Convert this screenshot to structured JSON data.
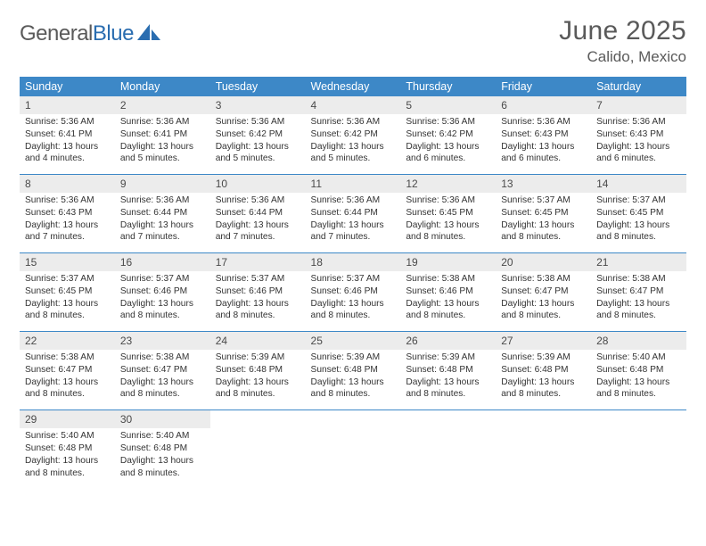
{
  "logo": {
    "word1": "General",
    "word2": "Blue"
  },
  "header": {
    "title": "June 2025",
    "location": "Calido, Mexico"
  },
  "colors": {
    "accent": "#3d88c7",
    "daynum_bg": "#ececec",
    "text_muted": "#5a5a5a",
    "text_body": "#333333",
    "logo_blue": "#2a6db0"
  },
  "typography": {
    "title_fontsize": 30,
    "location_fontsize": 17,
    "dow_fontsize": 12.5,
    "daynum_fontsize": 12,
    "cell_fontsize": 10.2
  },
  "calendar": {
    "dow": [
      "Sunday",
      "Monday",
      "Tuesday",
      "Wednesday",
      "Thursday",
      "Friday",
      "Saturday"
    ],
    "weeks": [
      [
        {
          "num": "1",
          "sunrise": "Sunrise: 5:36 AM",
          "sunset": "Sunset: 6:41 PM",
          "daylight": "Daylight: 13 hours and 4 minutes."
        },
        {
          "num": "2",
          "sunrise": "Sunrise: 5:36 AM",
          "sunset": "Sunset: 6:41 PM",
          "daylight": "Daylight: 13 hours and 5 minutes."
        },
        {
          "num": "3",
          "sunrise": "Sunrise: 5:36 AM",
          "sunset": "Sunset: 6:42 PM",
          "daylight": "Daylight: 13 hours and 5 minutes."
        },
        {
          "num": "4",
          "sunrise": "Sunrise: 5:36 AM",
          "sunset": "Sunset: 6:42 PM",
          "daylight": "Daylight: 13 hours and 5 minutes."
        },
        {
          "num": "5",
          "sunrise": "Sunrise: 5:36 AM",
          "sunset": "Sunset: 6:42 PM",
          "daylight": "Daylight: 13 hours and 6 minutes."
        },
        {
          "num": "6",
          "sunrise": "Sunrise: 5:36 AM",
          "sunset": "Sunset: 6:43 PM",
          "daylight": "Daylight: 13 hours and 6 minutes."
        },
        {
          "num": "7",
          "sunrise": "Sunrise: 5:36 AM",
          "sunset": "Sunset: 6:43 PM",
          "daylight": "Daylight: 13 hours and 6 minutes."
        }
      ],
      [
        {
          "num": "8",
          "sunrise": "Sunrise: 5:36 AM",
          "sunset": "Sunset: 6:43 PM",
          "daylight": "Daylight: 13 hours and 7 minutes."
        },
        {
          "num": "9",
          "sunrise": "Sunrise: 5:36 AM",
          "sunset": "Sunset: 6:44 PM",
          "daylight": "Daylight: 13 hours and 7 minutes."
        },
        {
          "num": "10",
          "sunrise": "Sunrise: 5:36 AM",
          "sunset": "Sunset: 6:44 PM",
          "daylight": "Daylight: 13 hours and 7 minutes."
        },
        {
          "num": "11",
          "sunrise": "Sunrise: 5:36 AM",
          "sunset": "Sunset: 6:44 PM",
          "daylight": "Daylight: 13 hours and 7 minutes."
        },
        {
          "num": "12",
          "sunrise": "Sunrise: 5:36 AM",
          "sunset": "Sunset: 6:45 PM",
          "daylight": "Daylight: 13 hours and 8 minutes."
        },
        {
          "num": "13",
          "sunrise": "Sunrise: 5:37 AM",
          "sunset": "Sunset: 6:45 PM",
          "daylight": "Daylight: 13 hours and 8 minutes."
        },
        {
          "num": "14",
          "sunrise": "Sunrise: 5:37 AM",
          "sunset": "Sunset: 6:45 PM",
          "daylight": "Daylight: 13 hours and 8 minutes."
        }
      ],
      [
        {
          "num": "15",
          "sunrise": "Sunrise: 5:37 AM",
          "sunset": "Sunset: 6:45 PM",
          "daylight": "Daylight: 13 hours and 8 minutes."
        },
        {
          "num": "16",
          "sunrise": "Sunrise: 5:37 AM",
          "sunset": "Sunset: 6:46 PM",
          "daylight": "Daylight: 13 hours and 8 minutes."
        },
        {
          "num": "17",
          "sunrise": "Sunrise: 5:37 AM",
          "sunset": "Sunset: 6:46 PM",
          "daylight": "Daylight: 13 hours and 8 minutes."
        },
        {
          "num": "18",
          "sunrise": "Sunrise: 5:37 AM",
          "sunset": "Sunset: 6:46 PM",
          "daylight": "Daylight: 13 hours and 8 minutes."
        },
        {
          "num": "19",
          "sunrise": "Sunrise: 5:38 AM",
          "sunset": "Sunset: 6:46 PM",
          "daylight": "Daylight: 13 hours and 8 minutes."
        },
        {
          "num": "20",
          "sunrise": "Sunrise: 5:38 AM",
          "sunset": "Sunset: 6:47 PM",
          "daylight": "Daylight: 13 hours and 8 minutes."
        },
        {
          "num": "21",
          "sunrise": "Sunrise: 5:38 AM",
          "sunset": "Sunset: 6:47 PM",
          "daylight": "Daylight: 13 hours and 8 minutes."
        }
      ],
      [
        {
          "num": "22",
          "sunrise": "Sunrise: 5:38 AM",
          "sunset": "Sunset: 6:47 PM",
          "daylight": "Daylight: 13 hours and 8 minutes."
        },
        {
          "num": "23",
          "sunrise": "Sunrise: 5:38 AM",
          "sunset": "Sunset: 6:47 PM",
          "daylight": "Daylight: 13 hours and 8 minutes."
        },
        {
          "num": "24",
          "sunrise": "Sunrise: 5:39 AM",
          "sunset": "Sunset: 6:48 PM",
          "daylight": "Daylight: 13 hours and 8 minutes."
        },
        {
          "num": "25",
          "sunrise": "Sunrise: 5:39 AM",
          "sunset": "Sunset: 6:48 PM",
          "daylight": "Daylight: 13 hours and 8 minutes."
        },
        {
          "num": "26",
          "sunrise": "Sunrise: 5:39 AM",
          "sunset": "Sunset: 6:48 PM",
          "daylight": "Daylight: 13 hours and 8 minutes."
        },
        {
          "num": "27",
          "sunrise": "Sunrise: 5:39 AM",
          "sunset": "Sunset: 6:48 PM",
          "daylight": "Daylight: 13 hours and 8 minutes."
        },
        {
          "num": "28",
          "sunrise": "Sunrise: 5:40 AM",
          "sunset": "Sunset: 6:48 PM",
          "daylight": "Daylight: 13 hours and 8 minutes."
        }
      ],
      [
        {
          "num": "29",
          "sunrise": "Sunrise: 5:40 AM",
          "sunset": "Sunset: 6:48 PM",
          "daylight": "Daylight: 13 hours and 8 minutes."
        },
        {
          "num": "30",
          "sunrise": "Sunrise: 5:40 AM",
          "sunset": "Sunset: 6:48 PM",
          "daylight": "Daylight: 13 hours and 8 minutes."
        },
        null,
        null,
        null,
        null,
        null
      ]
    ]
  }
}
